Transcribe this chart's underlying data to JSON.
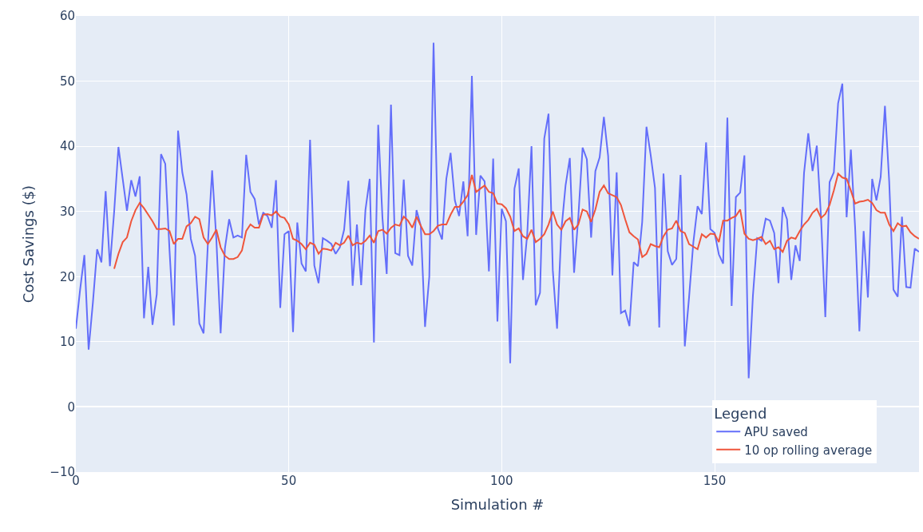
{
  "chart_data": {
    "type": "line",
    "xlabel": "Simulation #",
    "ylabel": "Cost Savings ($)",
    "legend_title": "Legend",
    "x": [
      0,
      1,
      2,
      3,
      4,
      5,
      6,
      7,
      8,
      9,
      10,
      11,
      12,
      13,
      14,
      15,
      16,
      17,
      18,
      19,
      20,
      21,
      22,
      23,
      24,
      25,
      26,
      27,
      28,
      29,
      30,
      31,
      32,
      33,
      34,
      35,
      36,
      37,
      38,
      39,
      40,
      41,
      42,
      43,
      44,
      45,
      46,
      47,
      48,
      49,
      50,
      51,
      52,
      53,
      54,
      55,
      56,
      57,
      58,
      59,
      60,
      61,
      62,
      63,
      64,
      65,
      66,
      67,
      68,
      69,
      70,
      71,
      72,
      73,
      74,
      75,
      76,
      77,
      78,
      79,
      80,
      81,
      82,
      83,
      84,
      85,
      86,
      87,
      88,
      89,
      90,
      91,
      92,
      93,
      94,
      95,
      96,
      97,
      98,
      99,
      100,
      101,
      102,
      103,
      104,
      105,
      106,
      107,
      108,
      109,
      110,
      111,
      112,
      113,
      114,
      115,
      116,
      117,
      118,
      119,
      120,
      121,
      122,
      123,
      124,
      125,
      126,
      127,
      128,
      129,
      130,
      131,
      132,
      133,
      134,
      135,
      136,
      137,
      138,
      139,
      140,
      141,
      142,
      143,
      144,
      145,
      146,
      147,
      148,
      149,
      150,
      151,
      152,
      153,
      154,
      155,
      156,
      157,
      158,
      159,
      160,
      161,
      162,
      163,
      164,
      165,
      166,
      167,
      168,
      169,
      170,
      171,
      172,
      173,
      174,
      175,
      176,
      177,
      178,
      179,
      180,
      181,
      182,
      183,
      184,
      185,
      186,
      187,
      188,
      189,
      190,
      191,
      192,
      193,
      194,
      195,
      196,
      197,
      198
    ],
    "series": [
      {
        "name": "APU saved",
        "color": "#636efa",
        "values": [
          12,
          18,
          23.3,
          8.8,
          16,
          24.2,
          22.2,
          33.1,
          21.6,
          30,
          39.9,
          35,
          30.1,
          34.8,
          32.3,
          35.4,
          13.6,
          21.5,
          12.6,
          17.3,
          38.8,
          37.3,
          24,
          12.5,
          42.4,
          36,
          32.6,
          25.8,
          23.2,
          12.8,
          11.3,
          25,
          36.3,
          25.6,
          11.3,
          24.3,
          28.8,
          26,
          26.3,
          26,
          38.7,
          33,
          31.9,
          28,
          29.8,
          29.3,
          27.5,
          34.8,
          15.2,
          26.5,
          27,
          11.5,
          28.3,
          22,
          20.8,
          41,
          21.7,
          19,
          25.9,
          25.5,
          25,
          23.5,
          24.5,
          27.2,
          34.7,
          18.6,
          28,
          18.7,
          30.2,
          35,
          9.9,
          43.3,
          29,
          20.4,
          46.4,
          23.6,
          23.3,
          34.9,
          23.2,
          21.7,
          30.2,
          27.8,
          12.3,
          20,
          55.9,
          27.4,
          25.7,
          35,
          39,
          31.7,
          29.3,
          34.6,
          26.2,
          50.8,
          26.4,
          35.5,
          34.6,
          20.8,
          38.1,
          13.1,
          30.4,
          28.5,
          6.7,
          33.5,
          36.6,
          19.5,
          26.5,
          40,
          15.6,
          17.5,
          41.2,
          45,
          21,
          12,
          27,
          34,
          38.2,
          20.6,
          29.2,
          39.8,
          38,
          26,
          36.2,
          38.3,
          44.5,
          38.5,
          20.2,
          36,
          14.4,
          14.8,
          12.4,
          22.2,
          21.6,
          28.4,
          43,
          38.6,
          33.6,
          12.2,
          35.8,
          23.9,
          21.8,
          22.7,
          35.6,
          9.3,
          16.8,
          25.2,
          30.8,
          29.6,
          40.6,
          27.3,
          26.7,
          23.4,
          22,
          44.4,
          15.5,
          32.2,
          32.9,
          38.6,
          4.4,
          17.1,
          25.9,
          25.5,
          28.9,
          28.6,
          26.7,
          19,
          30.7,
          28.8,
          19.5,
          24.8,
          22.4,
          35.9,
          42,
          36.2,
          40.1,
          29,
          13.8,
          34.5,
          36,
          46.6,
          49.6,
          29.1,
          39.5,
          27.5,
          11.6,
          27,
          16.8,
          35,
          31.7,
          35.3,
          46.2,
          34.6,
          18,
          16.9,
          29.2,
          18.4,
          18.3,
          24.3,
          23.8
        ]
      },
      {
        "name": "10 op rolling average",
        "color": "#ef553b",
        "values": [
          null,
          null,
          null,
          null,
          null,
          null,
          null,
          null,
          null,
          21.2,
          23.5,
          25.3,
          26,
          28.5,
          30.2,
          31.3,
          30.5,
          29.5,
          28.5,
          27.3,
          27.3,
          27.4,
          27,
          25,
          25.8,
          25.8,
          27.7,
          28.2,
          29.2,
          28.8,
          26,
          25,
          26,
          27.2,
          24.5,
          23.2,
          22.7,
          22.7,
          23,
          24,
          27,
          28,
          27.5,
          27.5,
          29.5,
          29.6,
          29.4,
          30,
          29.2,
          29,
          28,
          25.8,
          25.5,
          25,
          24.2,
          25.2,
          24.9,
          23.5,
          24.3,
          24.2,
          24,
          25.2,
          24.8,
          25.2,
          26.3,
          24.8,
          25.2,
          25,
          25.5,
          26.3,
          25.2,
          27,
          27.2,
          26.6,
          27.5,
          28,
          27.8,
          29.2,
          28.6,
          27.5,
          29.2,
          27.8,
          26.5,
          26.5,
          27,
          27.8,
          28,
          28,
          29.5,
          30.7,
          30.7,
          31.5,
          32.5,
          35.6,
          33,
          33.5,
          34,
          33,
          32.8,
          31.2,
          31.1,
          30.5,
          29.2,
          27,
          27.4,
          26.2,
          25.8,
          27.2,
          25.3,
          25.8,
          26.5,
          28,
          30,
          28,
          27.2,
          28.5,
          29,
          27.2,
          28,
          30.3,
          30,
          28.4,
          30.3,
          33,
          34,
          32.8,
          32.5,
          32.2,
          31,
          28.8,
          26.8,
          26.2,
          25.7,
          23,
          23.5,
          25,
          24.7,
          24.5,
          26.2,
          27.2,
          27.4,
          28.6,
          27,
          26.7,
          25,
          24.6,
          24.2,
          26.5,
          26,
          26.6,
          26.5,
          25.3,
          28.6,
          28.6,
          29,
          29.3,
          30.3,
          26.6,
          25.8,
          25.6,
          25.8,
          26.1,
          25,
          25.5,
          24.2,
          24.5,
          23.8,
          25.5,
          26,
          25.8,
          27,
          28,
          28.7,
          29.8,
          30.4,
          29,
          29.6,
          31,
          33.2,
          35.8,
          35.2,
          35,
          33.2,
          31.2,
          31.5,
          31.6,
          31.8,
          31.3,
          30.2,
          29.8,
          29.8,
          28,
          27,
          28.2,
          27.7,
          27.8,
          26.8,
          26.2,
          25.8
        ]
      }
    ],
    "xlim": [
      0,
      198
    ],
    "xticks": [
      0,
      50,
      100,
      150
    ],
    "ylim": [
      -10,
      60
    ],
    "yticks": [
      -10,
      0,
      10,
      20,
      30,
      40,
      50,
      60
    ],
    "grid": true,
    "legend": "bottom right",
    "marker": "none",
    "line_style": "solid"
  }
}
